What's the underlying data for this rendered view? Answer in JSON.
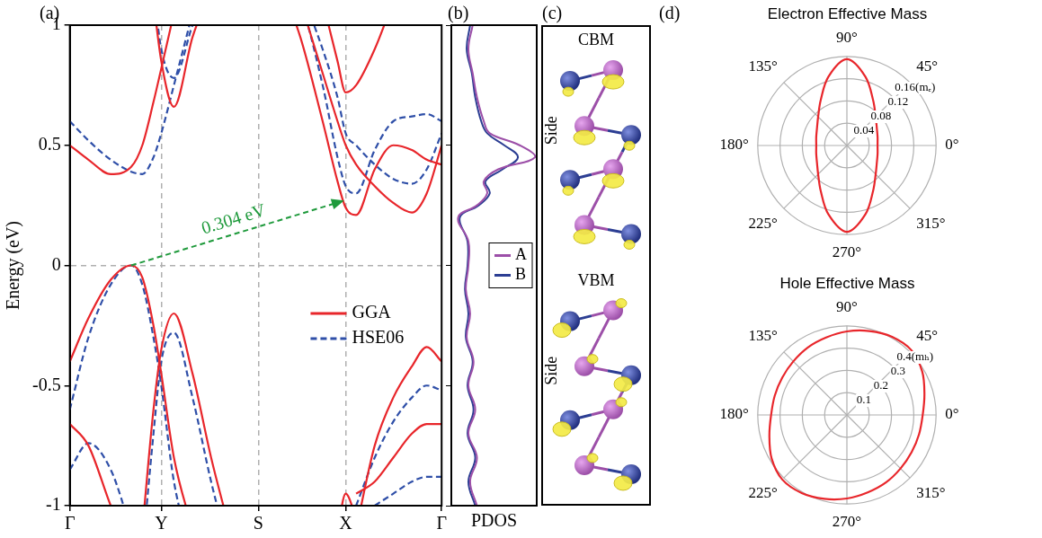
{
  "chart_data": [
    {
      "type": "line",
      "panel_label": "(a)",
      "y_label": "Energy (eV)",
      "x": [
        0,
        0.05,
        0.11,
        0.165,
        0.195,
        0.225,
        0.246,
        0.28,
        0.33,
        0.38,
        0.43,
        0.507,
        0.56,
        0.62,
        0.68,
        0.72,
        0.742,
        0.77,
        0.82,
        0.87,
        0.92,
        0.96,
        1
      ],
      "xlim": [
        0,
        1
      ],
      "xticks": [
        {
          "value": 0,
          "label": "Γ"
        },
        {
          "value": 0.246,
          "label": "Y"
        },
        {
          "value": 0.507,
          "label": "S"
        },
        {
          "value": 0.742,
          "label": "X"
        },
        {
          "value": 1,
          "label": "Γ"
        }
      ],
      "ylim": [
        -1,
        1
      ],
      "yticks": [
        -1,
        -0.5,
        0,
        0.5,
        1
      ],
      "grid": true,
      "legend": "right",
      "series": [
        {
          "name": "GGA",
          "color": "#e8262b",
          "line_style": "solid",
          "bands": [
            [
              0.5,
              0.44,
              0.38,
              0.41,
              0.5,
              0.68,
              0.82,
              1.05,
              null,
              null,
              null,
              null,
              null,
              null,
              null,
              null,
              null,
              null,
              null,
              null,
              null,
              null,
              null
            ],
            [
              null,
              null,
              null,
              null,
              null,
              1.1,
              0.85,
              0.66,
              0.95,
              1.15,
              null,
              null,
              null,
              null,
              null,
              null,
              null,
              null,
              null,
              null,
              null,
              null,
              null
            ],
            [
              null,
              null,
              null,
              null,
              null,
              null,
              null,
              null,
              null,
              null,
              null,
              null,
              1.2,
              0.95,
              0.6,
              0.35,
              0.24,
              0.21,
              0.4,
              0.5,
              0.48,
              0.44,
              0.42
            ],
            [
              null,
              null,
              null,
              null,
              null,
              null,
              null,
              null,
              null,
              null,
              null,
              null,
              null,
              1.1,
              0.8,
              0.6,
              0.5,
              0.42,
              0.33,
              0.26,
              0.22,
              0.3,
              0.5
            ],
            [
              null,
              null,
              null,
              null,
              null,
              null,
              null,
              null,
              null,
              null,
              null,
              null,
              null,
              null,
              1.1,
              0.85,
              0.72,
              0.75,
              0.9,
              1.1,
              null,
              null,
              null
            ],
            [
              -0.4,
              -0.22,
              -0.06,
              0,
              -0.05,
              -0.25,
              -0.45,
              -0.8,
              -1.1,
              null,
              null,
              null,
              null,
              null,
              null,
              null,
              null,
              null,
              null,
              null,
              null,
              null,
              null
            ],
            [
              null,
              null,
              null,
              null,
              -1.1,
              -0.6,
              -0.35,
              -0.2,
              -0.45,
              -0.8,
              -1.1,
              null,
              null,
              null,
              null,
              null,
              null,
              null,
              null,
              null,
              null,
              null,
              null
            ],
            [
              -0.66,
              -0.75,
              -1.0,
              -1.2,
              null,
              null,
              null,
              null,
              null,
              null,
              null,
              null,
              null,
              null,
              null,
              null,
              null,
              null,
              null,
              null,
              null,
              null,
              null
            ],
            [
              null,
              null,
              null,
              null,
              null,
              null,
              null,
              null,
              null,
              null,
              null,
              null,
              null,
              null,
              null,
              null,
              null,
              -1.1,
              -0.75,
              -0.55,
              -0.42,
              -0.34,
              -0.4
            ],
            [
              null,
              null,
              null,
              null,
              null,
              null,
              null,
              null,
              null,
              null,
              null,
              null,
              null,
              null,
              null,
              null,
              null,
              -0.95,
              -0.9,
              -0.8,
              -0.7,
              -0.66,
              -0.66
            ],
            [
              null,
              null,
              null,
              null,
              null,
              null,
              null,
              null,
              null,
              null,
              null,
              null,
              null,
              null,
              null,
              -1.1,
              -0.95,
              -1.05,
              null,
              null,
              null,
              null,
              null
            ]
          ]
        },
        {
          "name": "HSE06",
          "color": "#2f4fa8",
          "line_style": "dashed",
          "bands": [
            [
              0.6,
              0.52,
              0.44,
              0.39,
              0.38,
              0.45,
              0.55,
              0.75,
              1.05,
              null,
              null,
              null,
              null,
              null,
              null,
              null,
              null,
              null,
              null,
              null,
              null,
              null,
              null
            ],
            [
              null,
              null,
              null,
              null,
              null,
              1.15,
              0.9,
              0.78,
              1.0,
              1.2,
              null,
              null,
              null,
              null,
              null,
              null,
              null,
              null,
              null,
              null,
              null,
              null,
              null
            ],
            [
              null,
              null,
              null,
              null,
              null,
              null,
              null,
              null,
              null,
              null,
              null,
              null,
              1.25,
              1.1,
              0.75,
              0.45,
              0.33,
              0.3,
              0.48,
              0.6,
              0.62,
              0.63,
              0.6
            ],
            [
              null,
              null,
              null,
              null,
              null,
              null,
              null,
              null,
              null,
              null,
              null,
              null,
              null,
              1.15,
              0.9,
              0.7,
              0.55,
              0.5,
              0.42,
              0.36,
              0.34,
              0.4,
              0.55
            ],
            [
              -0.6,
              -0.3,
              -0.08,
              0,
              -0.08,
              -0.3,
              -0.5,
              -0.9,
              -1.2,
              null,
              null,
              null,
              null,
              null,
              null,
              null,
              null,
              null,
              null,
              null,
              null,
              null,
              null
            ],
            [
              null,
              null,
              null,
              null,
              -1.2,
              -0.7,
              -0.4,
              -0.28,
              -0.55,
              -0.9,
              -1.2,
              null,
              null,
              null,
              null,
              null,
              null,
              null,
              null,
              null,
              null,
              null,
              null
            ],
            [
              -0.85,
              -0.74,
              -0.85,
              -1.1,
              null,
              null,
              null,
              null,
              null,
              null,
              null,
              null,
              null,
              null,
              null,
              null,
              null,
              null,
              null,
              null,
              null,
              null,
              null
            ],
            [
              null,
              null,
              null,
              null,
              null,
              null,
              null,
              null,
              null,
              null,
              null,
              null,
              null,
              null,
              null,
              null,
              null,
              -1.0,
              -0.8,
              -0.65,
              -0.55,
              -0.5,
              -0.52
            ],
            [
              null,
              null,
              null,
              null,
              null,
              null,
              null,
              null,
              null,
              null,
              null,
              null,
              null,
              null,
              null,
              null,
              null,
              null,
              -1.0,
              -0.95,
              -0.9,
              -0.88,
              -0.88
            ]
          ]
        }
      ],
      "annotations": [
        {
          "text": "0.304 eV",
          "color": "#1f9a3c",
          "from": [
            0.165,
            0
          ],
          "to": [
            0.738,
            0.27
          ]
        }
      ]
    },
    {
      "type": "line",
      "panel_label": "(b)",
      "x_label": "PDOS",
      "orientation": "horizontal",
      "y": [
        -1,
        -0.9,
        -0.8,
        -0.7,
        -0.6,
        -0.5,
        -0.4,
        -0.3,
        -0.2,
        -0.1,
        0,
        0.1,
        0.2,
        0.25,
        0.3,
        0.35,
        0.4,
        0.45,
        0.5,
        0.55,
        0.6,
        0.7,
        0.8,
        0.9,
        1
      ],
      "xlim": [
        0,
        1
      ],
      "ylim": [
        -1,
        1
      ],
      "yticks": [
        -1,
        -0.5,
        0,
        0.5,
        1
      ],
      "tick_labels": false,
      "grid": false,
      "legend": "right",
      "series": [
        {
          "name": "A",
          "color": "#9c4fa8",
          "values": [
            0.3,
            0.22,
            0.3,
            0.2,
            0.28,
            0.2,
            0.26,
            0.18,
            0.22,
            0.17,
            0.2,
            0.2,
            0.08,
            0.3,
            0.42,
            0.38,
            0.55,
            0.98,
            0.8,
            0.45,
            0.38,
            0.3,
            0.25,
            0.2,
            0.25
          ]
        },
        {
          "name": "B",
          "color": "#2c3e93",
          "values": [
            0.28,
            0.2,
            0.28,
            0.19,
            0.26,
            0.19,
            0.25,
            0.17,
            0.2,
            0.16,
            0.19,
            0.19,
            0.1,
            0.32,
            0.45,
            0.4,
            0.6,
            0.78,
            0.62,
            0.42,
            0.35,
            0.28,
            0.24,
            0.18,
            0.22
          ]
        }
      ]
    },
    {
      "type": "polar",
      "panel_label": "(d)",
      "title": "Electron Effective Mass",
      "color": "#e8262b",
      "theta": [
        0,
        15,
        30,
        45,
        60,
        75,
        90,
        105,
        120,
        135,
        150,
        165,
        180,
        195,
        210,
        225,
        240,
        255,
        270,
        285,
        300,
        315,
        330,
        345
      ],
      "values": [
        0.055,
        0.057,
        0.062,
        0.073,
        0.094,
        0.128,
        0.155,
        0.128,
        0.094,
        0.073,
        0.062,
        0.057,
        0.055,
        0.057,
        0.062,
        0.073,
        0.094,
        0.128,
        0.155,
        0.128,
        0.094,
        0.073,
        0.062,
        0.057
      ],
      "rlim": [
        0,
        0.16
      ],
      "rticks": [
        0.04,
        0.08,
        0.12,
        {
          "value": 0.16,
          "label": "0.16(mₑ)"
        }
      ],
      "thetaticks": [
        {
          "value": 0,
          "label": "0°"
        },
        {
          "value": 45,
          "label": "45°"
        },
        {
          "value": 90,
          "label": "90°"
        },
        {
          "value": 135,
          "label": "135°"
        },
        {
          "value": 180,
          "label": "180°"
        },
        {
          "value": 225,
          "label": "225°"
        },
        {
          "value": 270,
          "label": "270°"
        },
        {
          "value": 315,
          "label": "315°"
        }
      ]
    },
    {
      "type": "polar",
      "title": "Hole Effective Mass",
      "color": "#e8262b",
      "theta": [
        0,
        15,
        30,
        45,
        60,
        75,
        90,
        105,
        120,
        135,
        150,
        165,
        180,
        195,
        210,
        225,
        240,
        255,
        270,
        285,
        300,
        315,
        330,
        345
      ],
      "values": [
        0.34,
        0.36,
        0.39,
        0.41,
        0.405,
        0.39,
        0.375,
        0.36,
        0.35,
        0.34,
        0.335,
        0.335,
        0.34,
        0.36,
        0.39,
        0.41,
        0.405,
        0.39,
        0.375,
        0.36,
        0.35,
        0.34,
        0.335,
        0.335
      ],
      "rlim": [
        0,
        0.4
      ],
      "rticks": [
        0.1,
        0.2,
        0.3,
        {
          "value": 0.4,
          "label": "0.4(mₕ)"
        }
      ],
      "thetaticks": [
        {
          "value": 0,
          "label": "0°"
        },
        {
          "value": 45,
          "label": "45°"
        },
        {
          "value": 90,
          "label": "90°"
        },
        {
          "value": 135,
          "label": "135°"
        },
        {
          "value": 180,
          "label": "180°"
        },
        {
          "value": 225,
          "label": "225°"
        },
        {
          "value": 270,
          "label": "270°"
        },
        {
          "value": 315,
          "label": "315°"
        }
      ]
    }
  ],
  "diagram": {
    "panel_label": "(c)",
    "sections": [
      {
        "title": "CBM",
        "view": "Side"
      },
      {
        "title": "VBM",
        "view": "Side"
      }
    ]
  }
}
